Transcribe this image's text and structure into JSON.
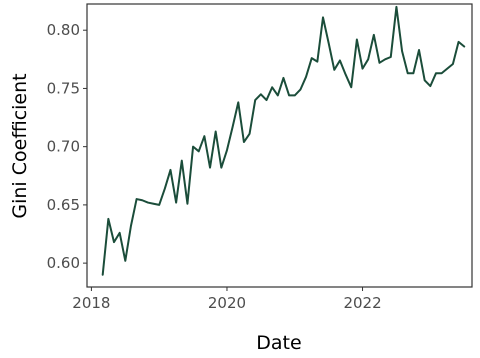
{
  "chart_data": {
    "type": "line",
    "title": "",
    "xlabel": "Date",
    "ylabel": "Gini Coefficient",
    "x_ticks": [
      {
        "value": 2018,
        "label": "2018"
      },
      {
        "value": 2020,
        "label": "2020"
      },
      {
        "value": 2022,
        "label": "2022"
      }
    ],
    "y_ticks": [
      {
        "value": 0.6,
        "label": "0.60"
      },
      {
        "value": 0.65,
        "label": "0.65"
      },
      {
        "value": 0.7,
        "label": "0.70"
      },
      {
        "value": 0.75,
        "label": "0.75"
      },
      {
        "value": 0.8,
        "label": "0.80"
      }
    ],
    "xlim": [
      2017.935,
      2023.615
    ],
    "ylim": [
      0.5795,
      0.8225
    ],
    "grid": false,
    "legend": "none",
    "colors": {
      "line": "#1b4d3a",
      "panel_border": "#333333",
      "tick_text": "#4d4d4d"
    },
    "series": [
      {
        "x": [
          "2018-03",
          "2018-04",
          "2018-05",
          "2018-06",
          "2018-07",
          "2018-08",
          "2018-09",
          "2018-10",
          "2018-11",
          "2018-12",
          "2019-01",
          "2019-02",
          "2019-03",
          "2019-04",
          "2019-05",
          "2019-06",
          "2019-07",
          "2019-08",
          "2019-09",
          "2019-10",
          "2019-11",
          "2019-12",
          "2020-01",
          "2020-02",
          "2020-03",
          "2020-04",
          "2020-05",
          "2020-06",
          "2020-07",
          "2020-08",
          "2020-09",
          "2020-10",
          "2020-11",
          "2020-12",
          "2021-01",
          "2021-02",
          "2021-03",
          "2021-04",
          "2021-05",
          "2021-06",
          "2021-07",
          "2021-08",
          "2021-09",
          "2021-10",
          "2021-11",
          "2021-12",
          "2022-01",
          "2022-02",
          "2022-03",
          "2022-04",
          "2022-05",
          "2022-06",
          "2022-07",
          "2022-08",
          "2022-09",
          "2022-10",
          "2022-11",
          "2022-12",
          "2023-01",
          "2023-02",
          "2023-03",
          "2023-04",
          "2023-05",
          "2023-06",
          "2023-07"
        ],
        "values": [
          0.59,
          0.638,
          0.618,
          0.626,
          0.602,
          0.632,
          0.655,
          0.654,
          0.652,
          0.651,
          0.65,
          0.664,
          0.68,
          0.652,
          0.688,
          0.651,
          0.7,
          0.696,
          0.709,
          0.682,
          0.713,
          0.682,
          0.697,
          0.717,
          0.738,
          0.704,
          0.711,
          0.74,
          0.745,
          0.74,
          0.751,
          0.744,
          0.759,
          0.744,
          0.744,
          0.749,
          0.76,
          0.776,
          0.773,
          0.811,
          0.789,
          0.766,
          0.774,
          0.762,
          0.751,
          0.792,
          0.767,
          0.775,
          0.796,
          0.772,
          0.775,
          0.777,
          0.82,
          0.782,
          0.763,
          0.763,
          0.783,
          0.757,
          0.752,
          0.763,
          0.763,
          0.767,
          0.771,
          0.79,
          0.786
        ]
      }
    ]
  }
}
